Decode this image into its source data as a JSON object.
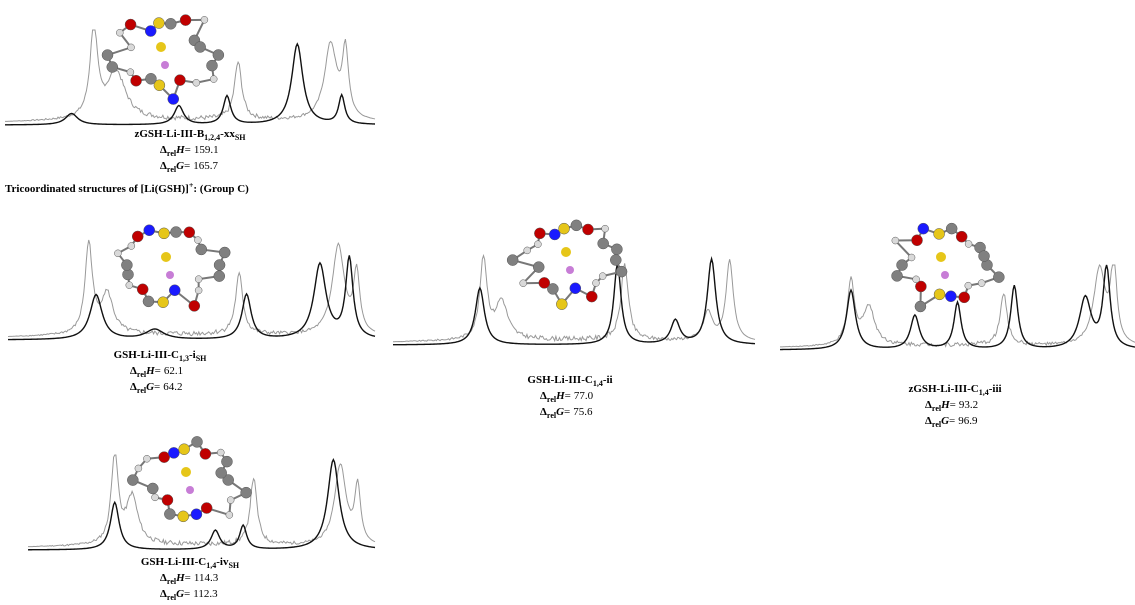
{
  "heading": {
    "main": "Tricoordinated  structures  of  [Li(GSH)]",
    "sup": "+",
    "rest": ":  (Group C)"
  },
  "symbols": {
    "delta": "Δ",
    "rel": "rel",
    "H": "H",
    "G": "G",
    "eq": "="
  },
  "panels": [
    {
      "name": [
        {
          "t": "zGSH-Li-III-B"
        },
        {
          "sub": "1,2,4"
        },
        {
          "t": "-xx"
        },
        {
          "sub": "SH"
        }
      ],
      "dH": "159.1",
      "dG": "165.7"
    },
    {
      "name": [
        {
          "t": "GSH-Li-III-C"
        },
        {
          "sub": "1,3"
        },
        {
          "t": "-i"
        },
        {
          "sub": "SH"
        }
      ],
      "dH": "62.1",
      "dG": "64.2"
    },
    {
      "name": [
        {
          "t": "GSH-Li-III-C"
        },
        {
          "sub": "1,4"
        },
        {
          "t": "-ii"
        }
      ],
      "dH": "77.0",
      "dG": "75.6"
    },
    {
      "name": [
        {
          "t": "zGSH-Li-III-C"
        },
        {
          "sub": "1,4"
        },
        {
          "t": "-iii"
        }
      ],
      "dH": "93.2",
      "dG": "96.9"
    },
    {
      "name": [
        {
          "t": "GSH-Li-III-C"
        },
        {
          "sub": "1,4"
        },
        {
          "t": "-iv"
        },
        {
          "sub": "SH"
        }
      ],
      "dH": "114.3",
      "dG": "112.3"
    }
  ]
}
